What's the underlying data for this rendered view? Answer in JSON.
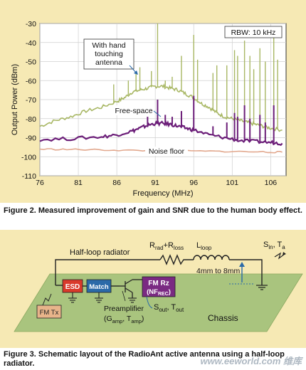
{
  "figure2": {
    "caption": "Figure 2. Measured improvement of gain and SNR due to the human body effect.",
    "chart_data": {
      "type": "line",
      "xlabel": "Frequency (MHz)",
      "ylabel": "Output Power (dBm)",
      "xlim": [
        76,
        108
      ],
      "ylim": [
        -110,
        -30
      ],
      "xticks": [
        76,
        81,
        86,
        91,
        96,
        101,
        106
      ],
      "yticks": [
        -30,
        -40,
        -50,
        -60,
        -70,
        -80,
        -90,
        -100,
        -110
      ],
      "rbw_label": "RBW: 10 kHz",
      "annotations": [
        "With hand touching antenna",
        "Free-space",
        "Noise floor"
      ],
      "series": [
        {
          "name": "With hand touching antenna",
          "color": "#a8b764",
          "x": [
            76,
            78,
            80,
            82,
            84,
            86,
            87,
            88,
            89,
            90,
            91,
            92,
            93,
            94,
            95,
            96,
            97,
            98,
            99,
            100,
            101,
            102,
            103,
            104,
            105,
            106,
            107.5
          ],
          "y": [
            -84,
            -81,
            -79,
            -76,
            -74,
            -71,
            -69,
            -66,
            -65,
            -64,
            -63,
            -63,
            -64,
            -65,
            -67,
            -69,
            -72,
            -74,
            -77,
            -79,
            -80,
            -81,
            -82,
            -83,
            -84,
            -85,
            -86
          ],
          "peaks": [
            {
              "x": 85.6,
              "y": -62
            },
            {
              "x": 87.5,
              "y": -60
            },
            {
              "x": 88.5,
              "y": -56
            },
            {
              "x": 89.0,
              "y": -53
            },
            {
              "x": 90.5,
              "y": -55
            },
            {
              "x": 91.3,
              "y": -30
            },
            {
              "x": 92.3,
              "y": -60
            },
            {
              "x": 93.2,
              "y": -58
            },
            {
              "x": 94.4,
              "y": -47
            },
            {
              "x": 96.0,
              "y": -36
            },
            {
              "x": 96.5,
              "y": -49
            },
            {
              "x": 98.5,
              "y": -56
            },
            {
              "x": 99.0,
              "y": -52
            },
            {
              "x": 100.3,
              "y": -52
            },
            {
              "x": 101.3,
              "y": -44
            },
            {
              "x": 101.7,
              "y": -47
            },
            {
              "x": 102.6,
              "y": -39
            },
            {
              "x": 103.3,
              "y": -47
            },
            {
              "x": 103.8,
              "y": -54
            },
            {
              "x": 104.6,
              "y": -43
            },
            {
              "x": 105.3,
              "y": -50
            },
            {
              "x": 106.4,
              "y": -36
            },
            {
              "x": 106.9,
              "y": -49
            }
          ]
        },
        {
          "name": "Free-space",
          "color": "#6b1d78",
          "x": [
            76,
            80,
            84,
            86,
            88,
            89,
            90,
            91,
            92,
            93,
            94,
            95,
            96,
            98,
            100,
            102,
            104,
            106,
            107.5
          ],
          "y": [
            -91,
            -90.5,
            -89.5,
            -88.5,
            -86.5,
            -85,
            -83.5,
            -82.5,
            -82.5,
            -83,
            -84,
            -85,
            -86,
            -88.5,
            -90,
            -91.5,
            -92,
            -92.5,
            -93
          ],
          "peaks": [
            {
              "x": 90.0,
              "y": -79
            },
            {
              "x": 91.3,
              "y": -70
            },
            {
              "x": 92.3,
              "y": -78
            },
            {
              "x": 93.2,
              "y": -79
            },
            {
              "x": 94.4,
              "y": -76
            },
            {
              "x": 96.0,
              "y": -68
            },
            {
              "x": 98.5,
              "y": -84
            },
            {
              "x": 100.3,
              "y": -82
            },
            {
              "x": 101.3,
              "y": -77
            },
            {
              "x": 101.7,
              "y": -79
            },
            {
              "x": 102.6,
              "y": -73
            },
            {
              "x": 103.3,
              "y": -80
            },
            {
              "x": 104.6,
              "y": -78
            },
            {
              "x": 105.3,
              "y": -82
            },
            {
              "x": 106.4,
              "y": -73
            }
          ]
        },
        {
          "name": "Noise floor",
          "color": "#e2a88e",
          "x": [
            76,
            80,
            85,
            90,
            95,
            100,
            105,
            107.5
          ],
          "y": [
            -96,
            -96.2,
            -96.5,
            -96.8,
            -97,
            -97.2,
            -97.5,
            -97.6
          ],
          "peaks": []
        }
      ]
    }
  },
  "figure3": {
    "caption": "Figure 3. Schematic layout of the RadioAnt active antenna using a half-loop radiator.",
    "labels": {
      "half_loop": "Half-loop radiator",
      "r_rad": "R",
      "r_rad_sub": "rad",
      "r_plus": "+R",
      "r_loss_sub": "loss",
      "l_loop": "L",
      "l_loop_sub": "loop",
      "dims": "4mm to 8mm",
      "s_in": "S",
      "s_in_sub": "in",
      "t_a": ", T",
      "t_a_sub": "a",
      "esd": "ESD",
      "match": "Match",
      "fm_rz": "FM Rz",
      "nf_rec_a": "(NF",
      "nf_rec_sub": "REC",
      "nf_rec_b": ")",
      "fm_tx": "FM Tx",
      "preamp": "Preamplifier",
      "g_amp": "(G",
      "g_amp_sub": "amp",
      "t_amp": ", T",
      "t_amp_sub": "amp",
      "t_amp_close": ")",
      "s_out": "S",
      "s_out_sub": "out",
      "t_out": ", T",
      "t_out_sub": "out",
      "chassis": "Chassis"
    }
  },
  "watermark": "www.eeworld.com 维库",
  "colors": {
    "panel_bg": "#f6e9b4",
    "chassis": "#a9c47e",
    "esd": "#d93a2b",
    "match": "#2b6aa8",
    "fm_rz": "#7a2a82",
    "fm_tx": "#e8b48a"
  }
}
